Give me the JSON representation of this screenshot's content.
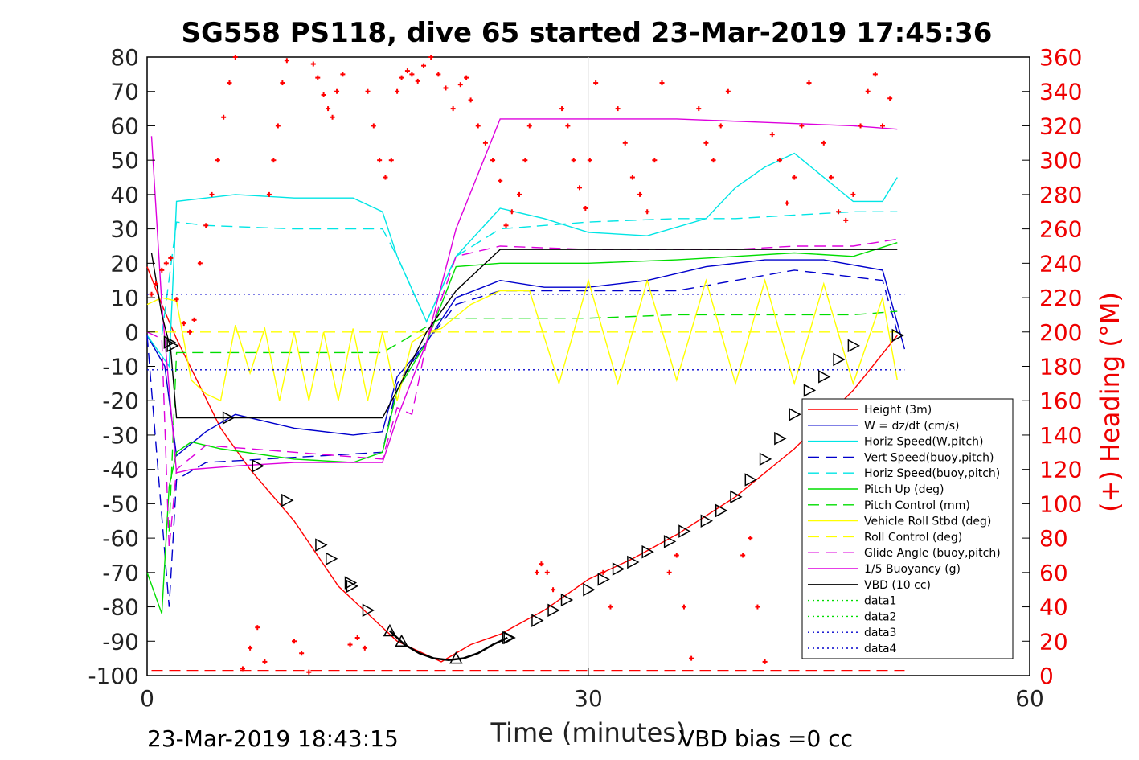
{
  "chart_data": {
    "type": "line",
    "title": "SG558 PS118, dive 65 started 23-Mar-2019 17:45:36",
    "xlabel": "Time (minutes)",
    "ylabel_right": "(+) Heading (°M)",
    "xlim": [
      0,
      60
    ],
    "ylim_left": [
      -100,
      80
    ],
    "ylim_right": [
      0,
      360
    ],
    "x_ticks": [
      "0",
      "30",
      "60"
    ],
    "y_ticks_left": [
      "80",
      "70",
      "60",
      "50",
      "40",
      "30",
      "20",
      "10",
      "0",
      "-10",
      "-20",
      "-30",
      "-40",
      "-50",
      "-60",
      "-70",
      "-80",
      "-90",
      "-100"
    ],
    "y_ticks_right": [
      "360",
      "340",
      "320",
      "300",
      "280",
      "260",
      "240",
      "220",
      "200",
      "180",
      "160",
      "140",
      "120",
      "100",
      "80",
      "60",
      "40",
      "20",
      "0"
    ],
    "grid": "x-only at 30",
    "legend_position": "bottom-right",
    "footer_left": "23-Mar-2019 18:43:15",
    "footer_right": "VBD bias =0 cc",
    "colors": {
      "height": "#ff0000",
      "w": "#0000cc",
      "horiz_w": "#00e5e5",
      "vert_buoy": "#0000cc",
      "horiz_buoy": "#00e5e5",
      "pitch": "#00dd00",
      "pitch_ctrl": "#00dd00",
      "roll": "#ffff00",
      "roll_ctrl": "#ffff00",
      "glide": "#dd00dd",
      "buoyancy": "#dd00dd",
      "vbd": "#000000",
      "heading": "#ff0000"
    },
    "series": [
      {
        "name": "Height (3m)",
        "x": [
          0,
          1,
          2,
          5,
          7,
          10,
          13,
          15,
          17,
          20,
          22,
          24,
          27,
          30,
          33,
          36,
          40,
          44,
          48,
          51
        ],
        "values": [
          19,
          8,
          -2,
          -28,
          -40,
          -55,
          -74,
          -82,
          -90,
          -96,
          -91,
          -88,
          -81,
          -72,
          -66,
          -59,
          -48,
          -34,
          -17,
          -1
        ]
      },
      {
        "name": "W = dz/dt (cm/s)",
        "x": [
          0,
          1.2,
          2,
          4,
          6,
          10,
          14,
          16,
          17,
          19,
          21,
          24,
          27,
          30,
          34,
          38,
          42,
          46,
          50,
          51.5
        ],
        "values": [
          -1,
          -10,
          -36,
          -29,
          -24,
          -28,
          -30,
          -29,
          -13,
          -3,
          10,
          15,
          13,
          13,
          15,
          19,
          21,
          21,
          18,
          -5
        ]
      },
      {
        "name": "Horiz Speed(W,pitch)",
        "x": [
          0,
          1.5,
          2,
          4,
          6,
          10,
          14,
          16,
          17,
          19,
          21,
          24,
          27,
          30,
          34,
          38,
          40,
          42,
          44,
          46,
          48,
          50,
          51
        ],
        "values": [
          -1,
          -10,
          38,
          39,
          40,
          39,
          39,
          35,
          22,
          3,
          22,
          36,
          33,
          29,
          28,
          33,
          42,
          48,
          52,
          45,
          38,
          38,
          45
        ]
      },
      {
        "name": "Vert Speed(buoy,pitch)",
        "x": [
          0,
          1.5,
          2,
          4,
          16,
          17,
          19,
          21,
          24,
          30,
          36,
          40,
          44,
          48,
          50,
          51
        ],
        "values": [
          -1,
          -80,
          -43,
          -38,
          -35,
          -15,
          -3,
          8,
          12,
          12,
          12,
          15,
          18,
          16,
          15,
          0
        ]
      },
      {
        "name": "Horiz Speed(buoy,pitch)",
        "x": [
          1,
          2,
          4,
          10,
          16,
          17,
          19,
          21,
          24,
          30,
          36,
          40,
          44,
          48,
          51
        ],
        "values": [
          -1,
          32,
          31,
          30,
          30,
          22,
          3,
          22,
          30,
          32,
          33,
          33,
          34,
          35,
          35
        ]
      },
      {
        "name": "Pitch Up (deg)",
        "x": [
          0,
          1,
          1.5,
          2,
          3,
          5,
          10,
          14,
          16,
          17,
          19,
          21,
          24,
          30,
          36,
          40,
          44,
          48,
          51
        ],
        "values": [
          -70,
          -82,
          -45,
          -35,
          -32,
          -34,
          -37,
          -38,
          -35,
          -17,
          -3,
          19,
          20,
          20,
          21,
          22,
          23,
          22,
          26
        ]
      },
      {
        "name": "Pitch Control (mm)",
        "x": [
          1.5,
          2,
          4,
          10,
          16,
          20,
          24,
          30,
          36,
          42,
          48,
          51
        ],
        "values": [
          -58,
          -6,
          -6,
          -6,
          -6,
          4,
          4,
          4,
          5,
          5,
          5,
          6
        ]
      },
      {
        "name": "Vehicle Roll Stbd (deg)",
        "x": [
          0,
          1,
          2,
          3,
          4,
          5,
          6,
          7,
          8,
          9,
          10,
          11,
          12,
          13,
          14,
          15,
          16,
          17,
          18,
          19,
          20,
          22,
          24,
          26,
          28,
          30,
          32,
          34,
          36,
          38,
          40,
          42,
          44,
          46,
          48,
          50,
          51
        ],
        "values": [
          8,
          10,
          9,
          -14,
          -18,
          -20,
          2,
          -12,
          1,
          -20,
          0,
          -20,
          0,
          -20,
          1,
          -20,
          0,
          -20,
          -3,
          0,
          1,
          8,
          12,
          12,
          -15,
          15,
          -15,
          15,
          -14,
          15,
          -15,
          15,
          -15,
          14,
          -15,
          10,
          -14
        ]
      },
      {
        "name": "Roll Control (deg)",
        "x": [
          0,
          2,
          4,
          10,
          16,
          20,
          24,
          30,
          36,
          42,
          48,
          51
        ],
        "values": [
          0,
          0,
          0,
          0,
          0,
          0,
          0,
          0,
          0,
          0,
          0,
          0
        ]
      },
      {
        "name": "Glide Angle (buoy,pitch)",
        "x": [
          0,
          1,
          1.5,
          2,
          4,
          10,
          16,
          17,
          18,
          19,
          21,
          24,
          30,
          36,
          40,
          44,
          48,
          51
        ],
        "values": [
          0,
          -2,
          -63,
          -40,
          -33,
          -35,
          -37,
          -22,
          -24,
          -3,
          22,
          25,
          24,
          24,
          24,
          25,
          25,
          27
        ]
      },
      {
        "name": "1/5 Buoyancy (g)",
        "x": [
          0.3,
          1,
          2,
          3,
          6,
          10,
          16,
          17,
          19,
          21,
          24,
          30,
          36,
          42,
          48,
          51
        ],
        "values": [
          57,
          8,
          -41,
          -40,
          -39,
          -38,
          -38,
          -25,
          -3,
          30,
          62,
          62,
          62,
          61,
          60,
          59
        ]
      },
      {
        "name": "VBD (10 cc)",
        "x": [
          0.3,
          1,
          1.6,
          2,
          5,
          10,
          16,
          17,
          19,
          21,
          24,
          30,
          36,
          42,
          48,
          51
        ],
        "values": [
          23,
          5,
          -5,
          -25,
          -25,
          -25,
          -25,
          -17,
          0,
          12,
          24,
          24,
          24,
          24,
          24,
          24
        ]
      },
      {
        "name": "data1",
        "x": [],
        "values": []
      },
      {
        "name": "data2",
        "x": [],
        "values": []
      },
      {
        "name": "data3",
        "x": [
          0,
          51.5
        ],
        "values": [
          11,
          11
        ]
      },
      {
        "name": "data4",
        "x": [
          0,
          51.5
        ],
        "values": [
          -11,
          -11
        ]
      }
    ],
    "heading": {
      "name": "Heading (°M)",
      "points": [
        [
          0.3,
          222
        ],
        [
          0.6,
          228
        ],
        [
          1,
          236
        ],
        [
          1.3,
          240
        ],
        [
          1.6,
          243
        ],
        [
          2,
          219
        ],
        [
          2.5,
          205
        ],
        [
          2.9,
          200
        ],
        [
          3.2,
          207
        ],
        [
          3.6,
          240
        ],
        [
          4,
          262
        ],
        [
          4.4,
          280
        ],
        [
          4.8,
          300
        ],
        [
          5.2,
          325
        ],
        [
          5.6,
          345
        ],
        [
          6,
          360
        ],
        [
          6.5,
          4
        ],
        [
          7,
          16
        ],
        [
          7.5,
          28
        ],
        [
          8,
          8
        ],
        [
          8.3,
          280
        ],
        [
          8.6,
          300
        ],
        [
          8.9,
          320
        ],
        [
          9.2,
          345
        ],
        [
          9.5,
          358
        ],
        [
          10,
          20
        ],
        [
          10.5,
          13
        ],
        [
          11,
          2
        ],
        [
          11.3,
          356
        ],
        [
          11.6,
          348
        ],
        [
          12,
          338
        ],
        [
          12.3,
          330
        ],
        [
          12.6,
          325
        ],
        [
          12.9,
          340
        ],
        [
          13.3,
          350
        ],
        [
          13.8,
          18
        ],
        [
          14.3,
          22
        ],
        [
          14.8,
          16
        ],
        [
          15,
          340
        ],
        [
          15.4,
          320
        ],
        [
          15.8,
          300
        ],
        [
          16.2,
          290
        ],
        [
          16.6,
          300
        ],
        [
          17.0,
          340
        ],
        [
          17.3,
          348
        ],
        [
          17.7,
          352
        ],
        [
          18,
          350
        ],
        [
          18.4,
          346
        ],
        [
          18.8,
          355
        ],
        [
          19.3,
          360
        ],
        [
          19.8,
          350
        ],
        [
          20.3,
          342
        ],
        [
          20.8,
          330
        ],
        [
          21.3,
          344
        ],
        [
          21.7,
          348
        ],
        [
          22,
          335
        ],
        [
          22.5,
          320
        ],
        [
          23,
          310
        ],
        [
          23.5,
          300
        ],
        [
          24,
          288
        ],
        [
          24.4,
          262
        ],
        [
          24.8,
          270
        ],
        [
          25.3,
          280
        ],
        [
          25.7,
          300
        ],
        [
          26,
          320
        ],
        [
          26.5,
          60
        ],
        [
          26.8,
          65
        ],
        [
          27.2,
          60
        ],
        [
          27.6,
          50
        ],
        [
          28.2,
          330
        ],
        [
          28.6,
          320
        ],
        [
          29,
          300
        ],
        [
          29.4,
          284
        ],
        [
          29.8,
          272
        ],
        [
          30.1,
          300
        ],
        [
          30.5,
          345
        ],
        [
          31,
          60
        ],
        [
          31.5,
          40
        ],
        [
          32,
          330
        ],
        [
          32.5,
          310
        ],
        [
          33,
          290
        ],
        [
          33.5,
          280
        ],
        [
          34,
          270
        ],
        [
          34.5,
          300
        ],
        [
          35,
          345
        ],
        [
          35.5,
          60
        ],
        [
          36,
          70
        ],
        [
          36.5,
          40
        ],
        [
          37,
          10
        ],
        [
          37.5,
          330
        ],
        [
          38,
          310
        ],
        [
          38.5,
          300
        ],
        [
          39,
          320
        ],
        [
          39.5,
          340
        ],
        [
          40.5,
          70
        ],
        [
          41,
          80
        ],
        [
          41.5,
          40
        ],
        [
          42,
          8
        ],
        [
          42.5,
          315
        ],
        [
          43,
          300
        ],
        [
          43.5,
          275
        ],
        [
          44,
          290
        ],
        [
          44.5,
          320
        ],
        [
          45,
          345
        ],
        [
          45.5,
          25
        ],
        [
          46,
          310
        ],
        [
          46.5,
          290
        ],
        [
          47,
          270
        ],
        [
          47.5,
          265
        ],
        [
          48,
          280
        ],
        [
          48.5,
          320
        ],
        [
          49,
          340
        ],
        [
          49.5,
          350
        ],
        [
          50,
          320
        ],
        [
          50.5,
          336
        ]
      ]
    },
    "height_markers": {
      "name": "Height markers",
      "points": [
        [
          1.5,
          -3
        ],
        [
          1.7,
          -4
        ],
        [
          5.5,
          -25
        ],
        [
          7.5,
          -39
        ],
        [
          9.5,
          -49
        ],
        [
          11.8,
          -62
        ],
        [
          12.5,
          -66
        ],
        [
          13.8,
          -73
        ],
        [
          13.9,
          -74
        ],
        [
          15,
          -81
        ],
        [
          16.5,
          -87
        ],
        [
          17.3,
          -90
        ],
        [
          21,
          -95
        ],
        [
          24.5,
          -89
        ],
        [
          24.6,
          -89
        ],
        [
          26.5,
          -84
        ],
        [
          27.6,
          -81
        ],
        [
          28.5,
          -78
        ],
        [
          30,
          -75
        ],
        [
          31,
          -72
        ],
        [
          32,
          -69
        ],
        [
          33,
          -67
        ],
        [
          34,
          -64
        ],
        [
          35.5,
          -61
        ],
        [
          36.5,
          -58
        ],
        [
          38,
          -55
        ],
        [
          39,
          -52
        ],
        [
          40,
          -48
        ],
        [
          41,
          -43
        ],
        [
          42,
          -37
        ],
        [
          43,
          -31
        ],
        [
          44,
          -24
        ],
        [
          45,
          -17
        ],
        [
          46,
          -13
        ],
        [
          47,
          -8
        ],
        [
          48,
          -4
        ],
        [
          51,
          -1
        ]
      ]
    },
    "legend": [
      {
        "label": "Height (3m)",
        "color": "#ff0000",
        "dash": "solid"
      },
      {
        "label": "W = dz/dt (cm/s)",
        "color": "#0000cc",
        "dash": "solid"
      },
      {
        "label": "Horiz Speed(W,pitch)",
        "color": "#00e5e5",
        "dash": "solid"
      },
      {
        "label": "Vert Speed(buoy,pitch)",
        "color": "#0000cc",
        "dash": "dashed"
      },
      {
        "label": "Horiz Speed(buoy,pitch)",
        "color": "#00e5e5",
        "dash": "dashed"
      },
      {
        "label": "Pitch Up (deg)",
        "color": "#00dd00",
        "dash": "solid"
      },
      {
        "label": "Pitch Control (mm)",
        "color": "#00dd00",
        "dash": "dashed"
      },
      {
        "label": "Vehicle Roll Stbd (deg)",
        "color": "#ffff00",
        "dash": "solid"
      },
      {
        "label": "Roll Control (deg)",
        "color": "#ffff00",
        "dash": "dashed"
      },
      {
        "label": "Glide Angle (buoy,pitch)",
        "color": "#dd00dd",
        "dash": "dashed"
      },
      {
        "label": "1/5 Buoyancy (g)",
        "color": "#dd00dd",
        "dash": "solid"
      },
      {
        "label": "VBD (10 cc)",
        "color": "#000000",
        "dash": "solid"
      },
      {
        "label": "data1",
        "color": "#00dd00",
        "dash": "dotted"
      },
      {
        "label": "data2",
        "color": "#00dd00",
        "dash": "dotted"
      },
      {
        "label": "data3",
        "color": "#0000cc",
        "dash": "dotted"
      },
      {
        "label": "data4",
        "color": "#0000cc",
        "dash": "dotted"
      }
    ]
  }
}
